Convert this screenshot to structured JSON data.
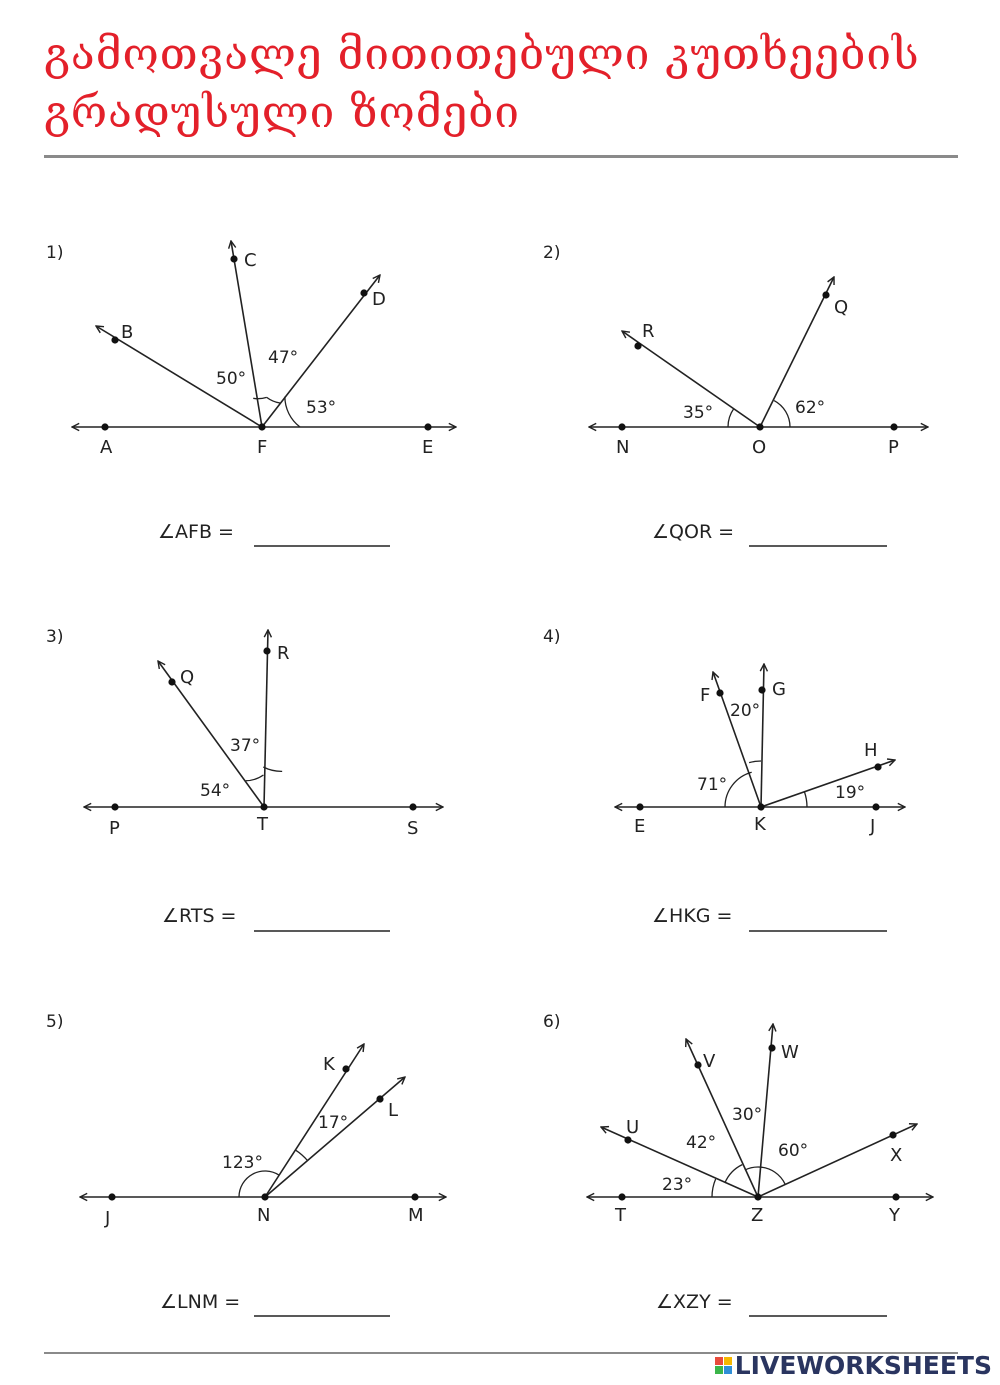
{
  "title": {
    "line1": "გამოთვალე მითითებული კუთხეების",
    "line2": "გრადუსული ზომები"
  },
  "colors": {
    "title": "#e3202a",
    "rule": "#8a8a8a",
    "brand": "#2a3560"
  },
  "problems": [
    {
      "number": "1)",
      "points": [
        "A",
        "F",
        "E",
        "B",
        "C",
        "D"
      ],
      "angles": [
        "50°",
        "47°",
        "53°"
      ],
      "question": "∠AFB =",
      "answer": ""
    },
    {
      "number": "2)",
      "points": [
        "N",
        "O",
        "P",
        "R",
        "Q"
      ],
      "angles": [
        "35°",
        "62°"
      ],
      "question": "∠QOR =",
      "answer": ""
    },
    {
      "number": "3)",
      "points": [
        "P",
        "T",
        "S",
        "Q",
        "R"
      ],
      "angles": [
        "54°",
        "37°"
      ],
      "question": "∠RTS =",
      "answer": ""
    },
    {
      "number": "4)",
      "points": [
        "E",
        "K",
        "J",
        "F",
        "G",
        "H"
      ],
      "angles": [
        "71°",
        "20°",
        "19°"
      ],
      "question": "∠HKG =",
      "answer": ""
    },
    {
      "number": "5)",
      "points": [
        "J",
        "N",
        "M",
        "K",
        "L"
      ],
      "angles": [
        "123°",
        "17°"
      ],
      "question": "∠LNM =",
      "answer": ""
    },
    {
      "number": "6)",
      "points": [
        "T",
        "Z",
        "Y",
        "U",
        "V",
        "W",
        "X"
      ],
      "angles": [
        "23°",
        "42°",
        "30°",
        "60°"
      ],
      "question": "∠XZY =",
      "answer": ""
    }
  ],
  "brand": {
    "name": "LIVEWORKSHEETS",
    "logo_icon": "liveworksheets-logo-icon"
  }
}
